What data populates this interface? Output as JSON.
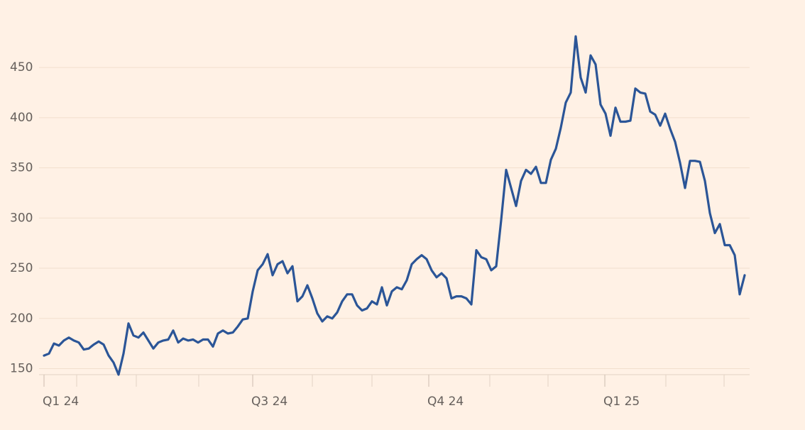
{
  "chart_data": {
    "type": "line",
    "series": [
      {
        "color": "#2b5597",
        "values": [
          163,
          165,
          175,
          173,
          178,
          181,
          178,
          176,
          169,
          170,
          174,
          177,
          174,
          163,
          156,
          144,
          165,
          195,
          183,
          181,
          186,
          178,
          170,
          176,
          178,
          179,
          188,
          176,
          180,
          178,
          179,
          176,
          179,
          179,
          172,
          185,
          188,
          185,
          186,
          192,
          199,
          200,
          227,
          248,
          254,
          264,
          243,
          254,
          257,
          245,
          252,
          217,
          222,
          233,
          220,
          205,
          197,
          202,
          200,
          206,
          217,
          224,
          224,
          213,
          208,
          210,
          217,
          214,
          231,
          213,
          227,
          231,
          229,
          238,
          254,
          259,
          263,
          259,
          248,
          241,
          245,
          240,
          220,
          222,
          222,
          220,
          214,
          268,
          261,
          259,
          248,
          252,
          298,
          348,
          330,
          312,
          337,
          348,
          344,
          351,
          335,
          335,
          358,
          369,
          390,
          415,
          425,
          481,
          440,
          425,
          462,
          453,
          413,
          404,
          382,
          410,
          396,
          396,
          397,
          429,
          425,
          424,
          406,
          403,
          392,
          404,
          389,
          376,
          355,
          330,
          357,
          357,
          356,
          337,
          305,
          285,
          294,
          273,
          273,
          263,
          224,
          243
        ]
      }
    ],
    "xlim": [
      0,
      141
    ],
    "xticks": [
      {
        "value": 0,
        "label": "Q1 24"
      },
      {
        "value": 42,
        "label": "Q3 24"
      },
      {
        "value": 77.43,
        "label": "Q4 24"
      },
      {
        "value": 112.86,
        "label": "Q1 25"
      }
    ],
    "xminorticks": [
      6.57,
      18.57,
      31.14,
      54,
      66,
      89.71,
      101.43,
      125.14,
      136.86
    ],
    "ylim": [
      144,
      496
    ],
    "yticks": [
      150,
      200,
      250,
      300,
      350,
      400,
      450
    ],
    "grid": true
  }
}
